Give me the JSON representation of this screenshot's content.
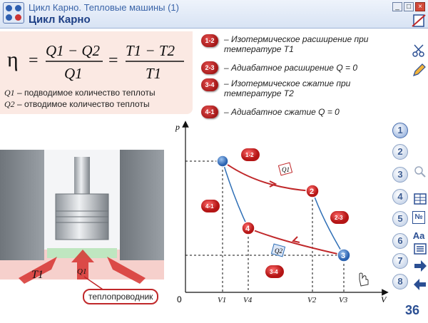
{
  "window": {
    "title": "Цикл Карно. Тепловые машины (1)",
    "page_title": "Цикл Карно",
    "buttons": [
      "_",
      "□",
      "×"
    ]
  },
  "formula": {
    "eta": "η",
    "eq": "=",
    "num1": "Q1 − Q2",
    "den1": "Q1",
    "num2": "T1 − T2",
    "den2": "T1",
    "def1_sym": "Q1",
    "def1_text": " – подводимое количество теплоты",
    "def2_sym": "Q2",
    "def2_text": " – отводимое количество теплоты"
  },
  "legend": [
    {
      "badge": "1-2",
      "text": "– Изотермическое расширение при температуре T1"
    },
    {
      "badge": "2-3",
      "text": "– Адиабатное расширение Q = 0"
    },
    {
      "badge": "3-4",
      "text": "– Изотермическое сжатие при температуре T2"
    },
    {
      "badge": "4-1",
      "text": "– Адиабатное сжатие Q = 0"
    }
  ],
  "engine": {
    "t1_label": "T1",
    "q1_label": "Q1",
    "conductor_label": "теплопроводник"
  },
  "diagram": {
    "p_axis": "p",
    "v_axis": "V",
    "origin": "0",
    "ticks": [
      "V1",
      "V4",
      "V2",
      "V3"
    ],
    "points": [
      "1",
      "2",
      "3",
      "4"
    ],
    "process_badges": [
      "1-2",
      "2-3",
      "3-4",
      "4-1"
    ],
    "q1": "Q1",
    "q2": "Q2"
  },
  "sidebar": {
    "steps": [
      "1",
      "2",
      "3",
      "4",
      "5",
      "6",
      "7",
      "8"
    ],
    "page_number": "36",
    "tools": [
      "page-icon",
      "pen-icon",
      "magnifier-icon",
      "table-icon",
      "numbering-icon",
      "font-icon",
      "list-icon",
      "next-arrow-icon",
      "prev-arrow-icon"
    ]
  },
  "colors": {
    "accent": "#2b4f93",
    "process_red": "#c0282a",
    "process_blue": "#2f6fb6",
    "formula_bg": "#fbe9e3"
  }
}
